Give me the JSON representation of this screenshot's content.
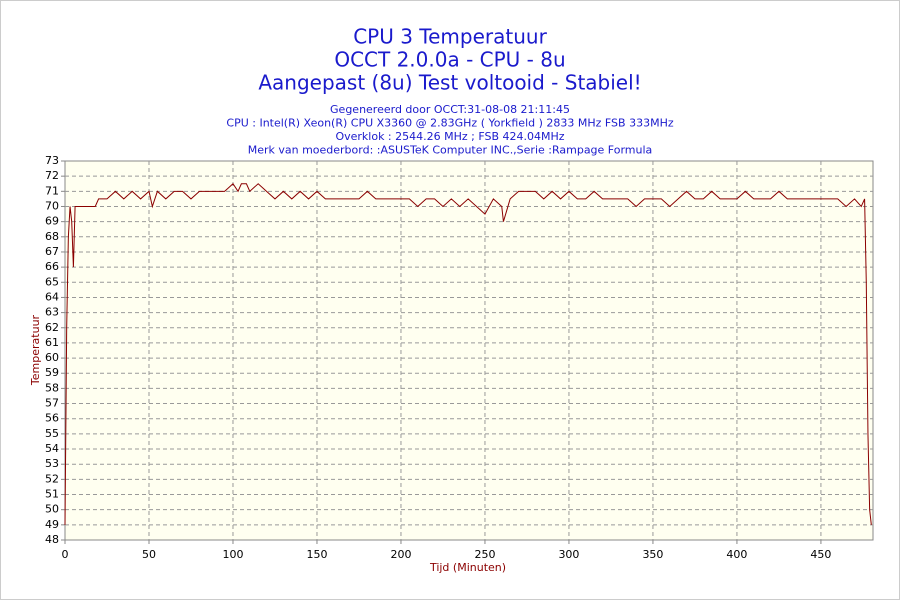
{
  "chart_data": {
    "type": "line",
    "title_lines": [
      "CPU 3 Temperatuur",
      "OCCT 2.0.0a - CPU - 8u",
      "Aangepast (8u) Test voltooid - Stabiel!"
    ],
    "subtitle_lines": [
      "Gegenereerd door OCCT:31-08-08 21:11:45",
      "CPU : Intel(R) Xeon(R) CPU X3360 @ 2.83GHz ( Yorkfield ) 2833 MHz FSB 333MHz",
      "Overklok : 2544.26 MHz ; FSB 424.04MHz",
      "Merk van moederbord: :ASUSTeK Computer INC.,Serie :Rampage Formula"
    ],
    "xlabel": "Tijd (Minuten)",
    "ylabel": "Temperatuur",
    "x": [
      0,
      1,
      2,
      3,
      4,
      5,
      6,
      8,
      10,
      12,
      15,
      18,
      20,
      25,
      30,
      35,
      40,
      45,
      50,
      52,
      55,
      60,
      65,
      70,
      75,
      80,
      85,
      90,
      95,
      100,
      103,
      105,
      108,
      110,
      115,
      120,
      125,
      130,
      135,
      140,
      145,
      150,
      155,
      160,
      165,
      170,
      175,
      180,
      185,
      190,
      195,
      200,
      205,
      210,
      215,
      220,
      225,
      230,
      235,
      240,
      245,
      250,
      255,
      260,
      261,
      265,
      270,
      275,
      280,
      285,
      290,
      295,
      300,
      305,
      310,
      315,
      320,
      325,
      330,
      335,
      340,
      345,
      350,
      355,
      360,
      365,
      370,
      375,
      380,
      385,
      390,
      395,
      400,
      405,
      410,
      415,
      420,
      425,
      430,
      435,
      440,
      445,
      450,
      455,
      460,
      465,
      470,
      474,
      476,
      477,
      478,
      479,
      480
    ],
    "series": [
      {
        "name": "Temperatuur",
        "color": "#8b0000",
        "values": [
          49,
          62,
          68,
          70,
          69,
          66,
          70,
          70,
          70,
          70,
          70,
          70,
          70.5,
          70.5,
          71,
          70.5,
          71,
          70.5,
          71,
          70,
          71,
          70.5,
          71,
          71,
          70.5,
          71,
          71,
          71,
          71,
          71.5,
          71,
          71.5,
          71.5,
          71,
          71.5,
          71,
          70.5,
          71,
          70.5,
          71,
          70.5,
          71,
          70.5,
          70.5,
          70.5,
          70.5,
          70.5,
          71,
          70.5,
          70.5,
          70.5,
          70.5,
          70.5,
          70,
          70.5,
          70.5,
          70,
          70.5,
          70,
          70.5,
          70,
          69.5,
          70.5,
          70,
          69,
          70.5,
          71,
          71,
          71,
          70.5,
          71,
          70.5,
          71,
          70.5,
          70.5,
          71,
          70.5,
          70.5,
          70.5,
          70.5,
          70,
          70.5,
          70.5,
          70.5,
          70,
          70.5,
          71,
          70.5,
          70.5,
          71,
          70.5,
          70.5,
          70.5,
          71,
          70.5,
          70.5,
          70.5,
          71,
          70.5,
          70.5,
          70.5,
          70.5,
          70.5,
          70.5,
          70.5,
          70,
          70.5,
          70,
          70.5,
          65,
          55,
          50,
          49
        ]
      }
    ],
    "xlim": [
      0,
      481
    ],
    "ylim": [
      48,
      73
    ],
    "xticks": [
      0,
      50,
      100,
      150,
      200,
      250,
      300,
      350,
      400,
      450
    ],
    "yticks": [
      48,
      49,
      50,
      51,
      52,
      53,
      54,
      55,
      56,
      57,
      58,
      59,
      60,
      61,
      62,
      63,
      64,
      65,
      66,
      67,
      68,
      69,
      70,
      71,
      72,
      73
    ],
    "grid": true
  }
}
